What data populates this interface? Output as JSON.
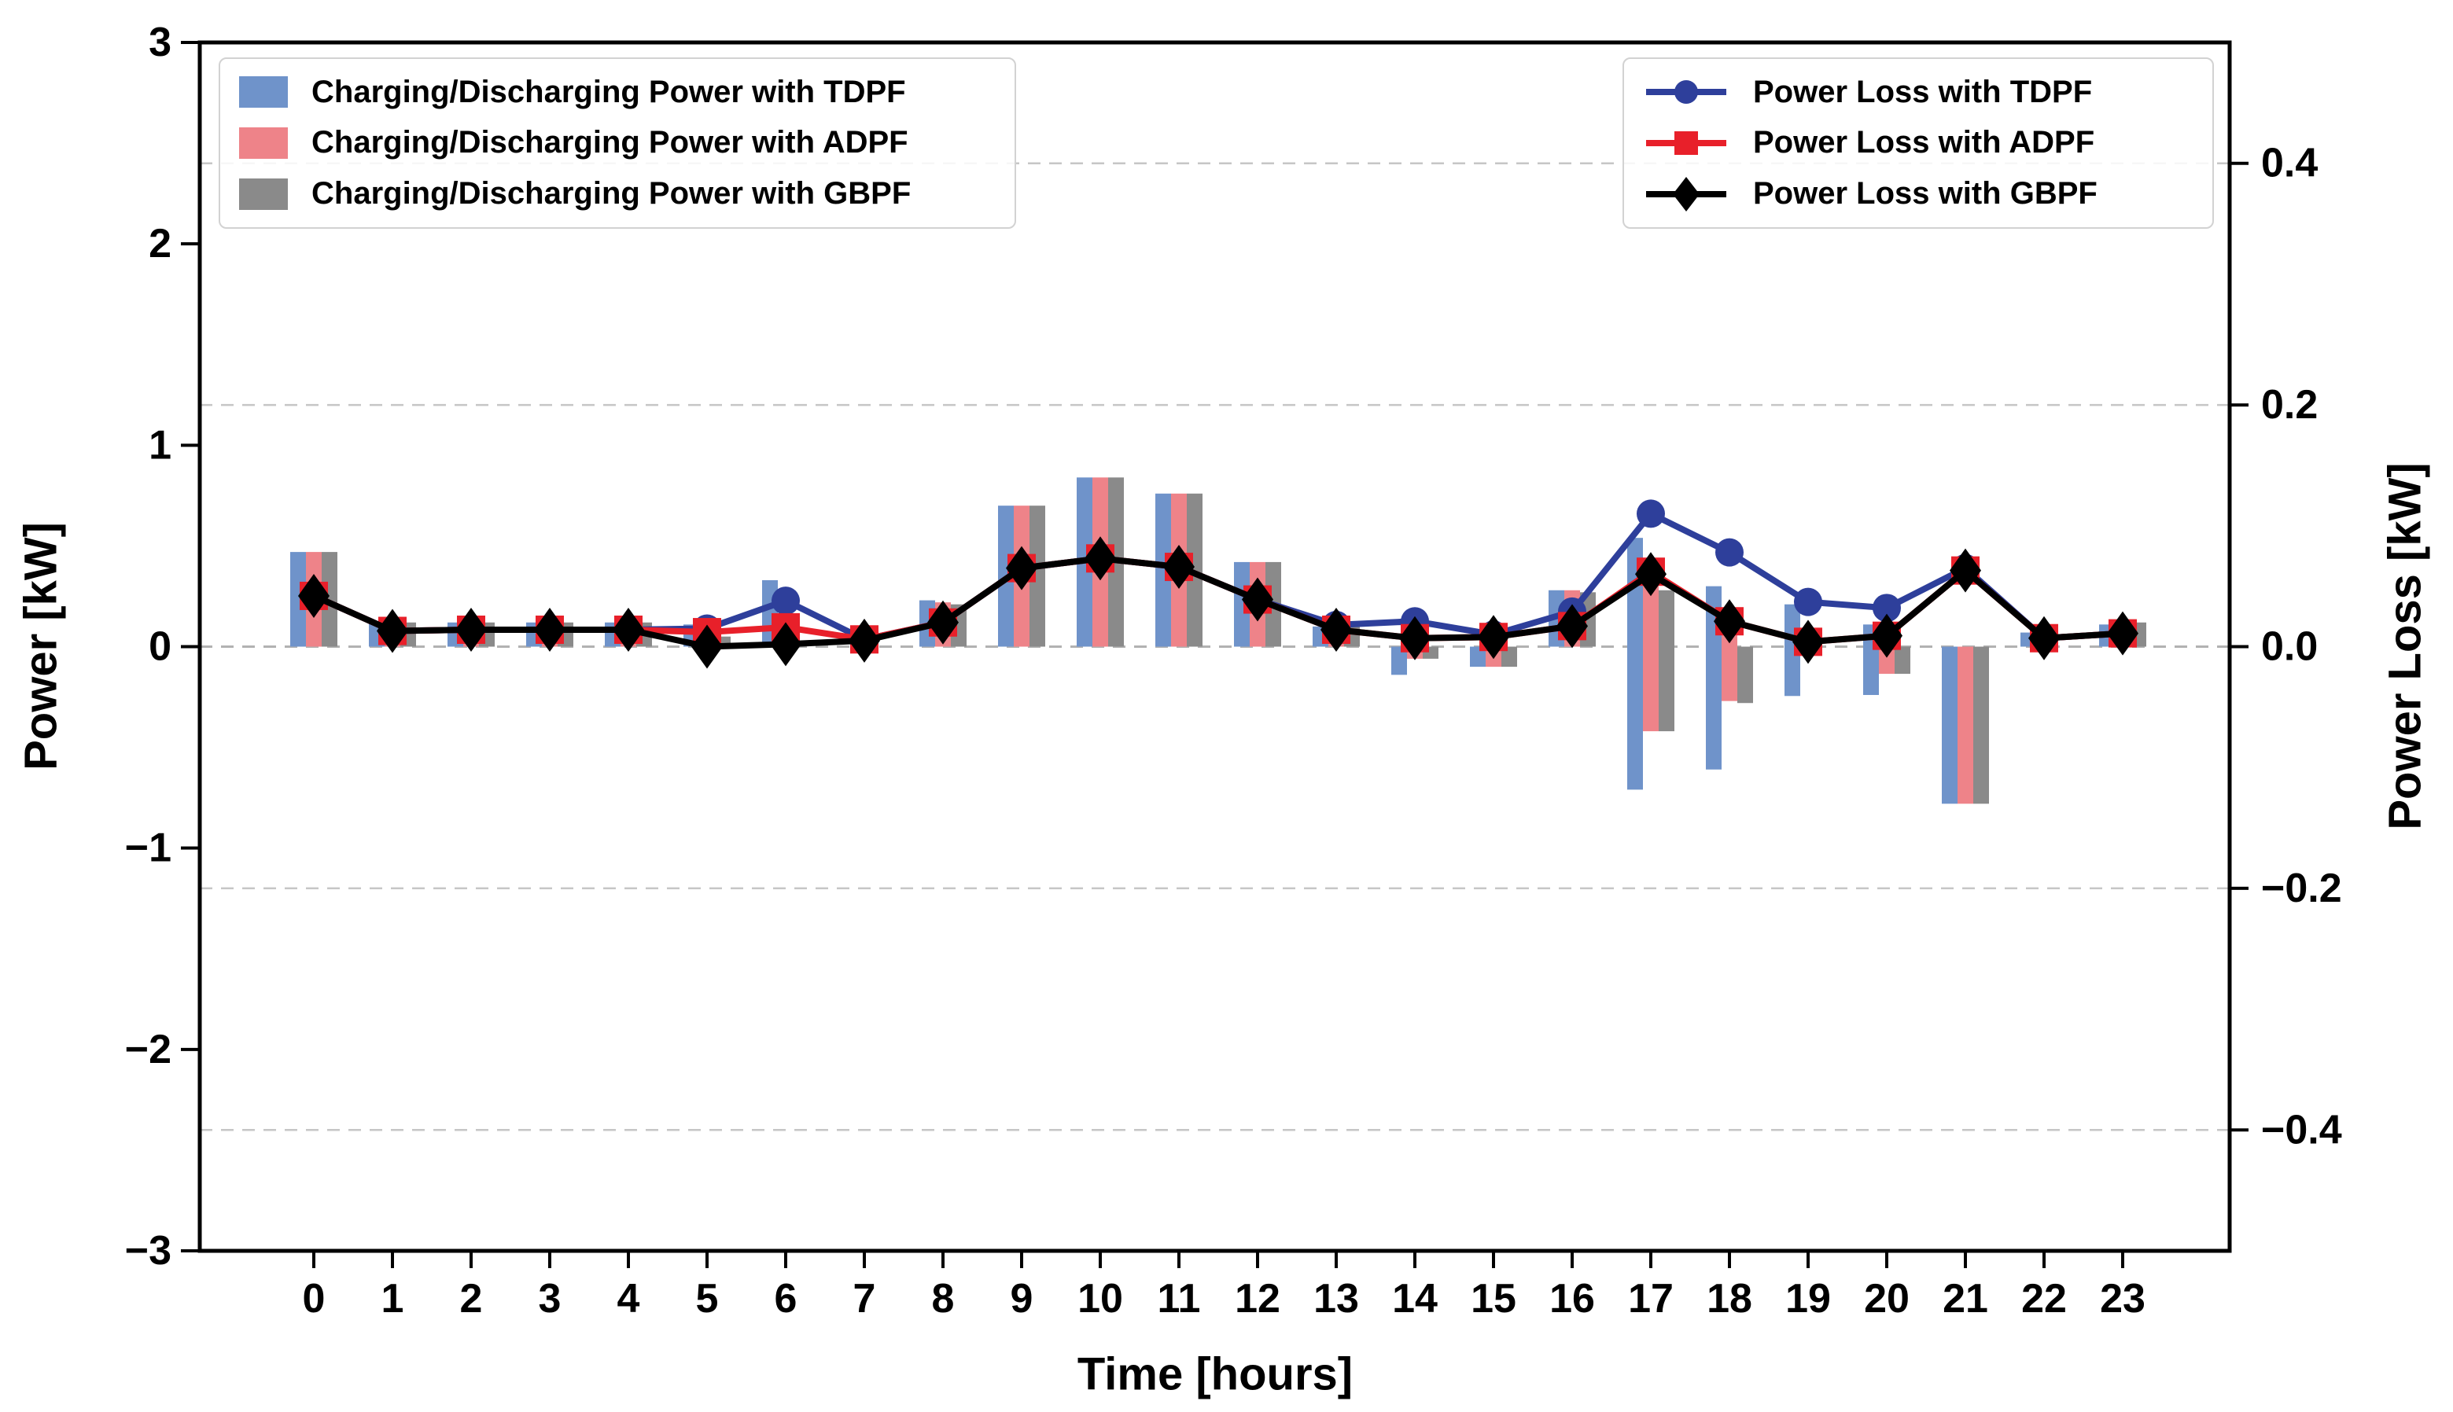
{
  "figure": {
    "x_axis": {
      "label": "Time [hours]"
    },
    "y_left": {
      "label": "Power [kW]",
      "ticks": [
        "3",
        "2",
        "1",
        "0",
        "−1",
        "−2",
        "−3"
      ],
      "tick_values": [
        3,
        2,
        1,
        0,
        -1,
        -2,
        -3
      ],
      "range": [
        -3,
        3
      ]
    },
    "y_right": {
      "label": "Power Loss [kW]",
      "ticks": [
        "0.4",
        "0.2",
        "0.0",
        "−0.2",
        "−0.4"
      ],
      "tick_values": [
        0.4,
        0.2,
        0.0,
        -0.2,
        -0.4
      ],
      "range": [
        -0.5,
        0.5
      ]
    }
  },
  "colors": {
    "bar_tdpf": "#6f93ca",
    "bar_adpf": "#ee8389",
    "bar_gbpf": "#8a8a8a",
    "line_tdpf": "#2e3f9b",
    "line_adpf": "#e8202a",
    "line_gbpf": "#000000",
    "grid": "#c6c6c6",
    "zero_line": "#b2b2b2",
    "spine": "#000000",
    "legend_border": "#d2d2d2"
  },
  "chart_data": {
    "type": "bar",
    "title": "",
    "xlabel": "Time [hours]",
    "ylabel_left": "Power [kW]",
    "ylabel_right": "Power Loss [kW]",
    "x_ticks": [
      "0",
      "1",
      "2",
      "3",
      "4",
      "5",
      "6",
      "7",
      "8",
      "9",
      "10",
      "11",
      "12",
      "13",
      "14",
      "15",
      "16",
      "17",
      "18",
      "19",
      "20",
      "21",
      "22",
      "23"
    ],
    "categories": [
      0,
      1,
      2,
      3,
      4,
      5,
      6,
      7,
      8,
      9,
      10,
      11,
      12,
      13,
      14,
      15,
      16,
      17,
      18,
      19,
      20,
      21,
      22,
      23
    ],
    "ylim_left": [
      -3,
      3
    ],
    "ylim_right": [
      -0.5,
      0.5
    ],
    "grid": "dashed horizontal at right-axis ticks 0.4, 0.2, 0.0, -0.2, -0.4",
    "gridlines_right": [
      0.4,
      0.2,
      0.0,
      -0.2,
      -0.4
    ],
    "legend_positions": {
      "bars": "upper left",
      "lines": "upper right"
    },
    "bar_series": [
      {
        "name": "Charging/Discharging Power with TDPF",
        "axis": "left",
        "color_key": "bar_tdpf",
        "values_kw_range": [
          [
            0,
            0.47
          ],
          [
            0,
            0.12
          ],
          [
            0,
            0.12
          ],
          [
            0,
            0.12
          ],
          [
            0,
            0.12
          ],
          [
            0,
            0.11
          ],
          [
            0,
            0.33
          ],
          [
            0,
            0
          ],
          [
            0,
            0.23
          ],
          [
            0,
            0.7
          ],
          [
            0,
            0.84
          ],
          [
            0,
            0.76
          ],
          [
            0,
            0.42
          ],
          [
            0,
            0.1
          ],
          [
            -0.14,
            0
          ],
          [
            -0.1,
            0
          ],
          [
            0,
            0.28
          ],
          [
            -0.71,
            0.54
          ],
          [
            -0.61,
            0.3
          ],
          [
            -0.245,
            0.21
          ],
          [
            -0.24,
            0.11
          ],
          [
            -0.78,
            0
          ],
          [
            0,
            0.07
          ],
          [
            0,
            0.11
          ]
        ]
      },
      {
        "name": "Charging/Discharging Power with ADPF",
        "axis": "left",
        "color_key": "bar_adpf",
        "values_kw_range": [
          [
            0,
            0.47
          ],
          [
            0,
            0.12
          ],
          [
            0,
            0.12
          ],
          [
            0,
            0.12
          ],
          [
            0,
            0.12
          ],
          [
            0,
            0.11
          ],
          [
            0,
            0
          ],
          [
            0,
            0
          ],
          [
            0,
            0.22
          ],
          [
            0,
            0.7
          ],
          [
            0,
            0.84
          ],
          [
            0,
            0.76
          ],
          [
            0,
            0.42
          ],
          [
            0,
            0.1
          ],
          [
            -0.06,
            0
          ],
          [
            -0.1,
            0
          ],
          [
            0,
            0.28
          ],
          [
            -0.42,
            0.35
          ],
          [
            -0.27,
            0.08
          ],
          [
            0,
            0
          ],
          [
            -0.135,
            0
          ],
          [
            -0.78,
            0
          ],
          [
            0,
            0.06
          ],
          [
            0,
            0.11
          ]
        ]
      },
      {
        "name": "Charging/Discharging Power with GBPF",
        "axis": "left",
        "color_key": "bar_gbpf",
        "values_kw_range": [
          [
            0,
            0.47
          ],
          [
            0,
            0.12
          ],
          [
            0,
            0.12
          ],
          [
            0,
            0.12
          ],
          [
            0,
            0.12
          ],
          [
            0,
            0.05
          ],
          [
            0,
            0
          ],
          [
            0,
            0
          ],
          [
            0,
            0.21
          ],
          [
            0,
            0.7
          ],
          [
            0,
            0.84
          ],
          [
            0,
            0.76
          ],
          [
            0,
            0.42
          ],
          [
            0,
            0.1
          ],
          [
            -0.06,
            0
          ],
          [
            -0.1,
            0
          ],
          [
            0,
            0.27
          ],
          [
            -0.42,
            0.28
          ],
          [
            -0.28,
            0
          ],
          [
            0,
            0
          ],
          [
            -0.135,
            0
          ],
          [
            -0.78,
            0
          ],
          [
            0,
            0
          ],
          [
            0,
            0.12
          ]
        ]
      }
    ],
    "line_series": [
      {
        "name": "Power Loss with TDPF",
        "axis": "right",
        "marker": "circle",
        "color_key": "line_tdpf",
        "values_kw": [
          0.042,
          0.013,
          0.014,
          0.014,
          0.014,
          0.015,
          0.038,
          0.006,
          0.02,
          0.065,
          0.073,
          0.066,
          0.039,
          0.018,
          0.021,
          0.01,
          0.029,
          0.11,
          0.078,
          0.037,
          0.032,
          0.065,
          0.007,
          0.011
        ]
      },
      {
        "name": "Power Loss with ADPF",
        "axis": "right",
        "marker": "square",
        "color_key": "line_adpf",
        "values_kw": [
          0.042,
          0.013,
          0.014,
          0.014,
          0.014,
          0.012,
          0.016,
          0.006,
          0.02,
          0.065,
          0.073,
          0.066,
          0.039,
          0.014,
          0.007,
          0.008,
          0.017,
          0.062,
          0.021,
          0.004,
          0.009,
          0.063,
          0.007,
          0.011
        ]
      },
      {
        "name": "Power Loss with GBPF",
        "axis": "right",
        "marker": "diamond",
        "color_key": "line_gbpf",
        "values_kw": [
          0.042,
          0.013,
          0.014,
          0.014,
          0.014,
          0.0,
          0.002,
          0.005,
          0.02,
          0.065,
          0.073,
          0.066,
          0.039,
          0.014,
          0.007,
          0.008,
          0.017,
          0.06,
          0.021,
          0.004,
          0.009,
          0.063,
          0.007,
          0.011
        ]
      }
    ]
  },
  "legend_bars": {
    "items": [
      {
        "label": "Charging/Discharging Power with TDPF",
        "color_key": "bar_tdpf"
      },
      {
        "label": "Charging/Discharging Power with ADPF",
        "color_key": "bar_adpf"
      },
      {
        "label": "Charging/Discharging Power with GBPF",
        "color_key": "bar_gbpf"
      }
    ]
  },
  "legend_lines": {
    "items": [
      {
        "label": "Power Loss with TDPF",
        "color_key": "line_tdpf",
        "marker": "circle"
      },
      {
        "label": "Power Loss with ADPF",
        "color_key": "line_adpf",
        "marker": "square"
      },
      {
        "label": "Power Loss with GBPF",
        "color_key": "line_gbpf",
        "marker": "diamond"
      }
    ]
  }
}
